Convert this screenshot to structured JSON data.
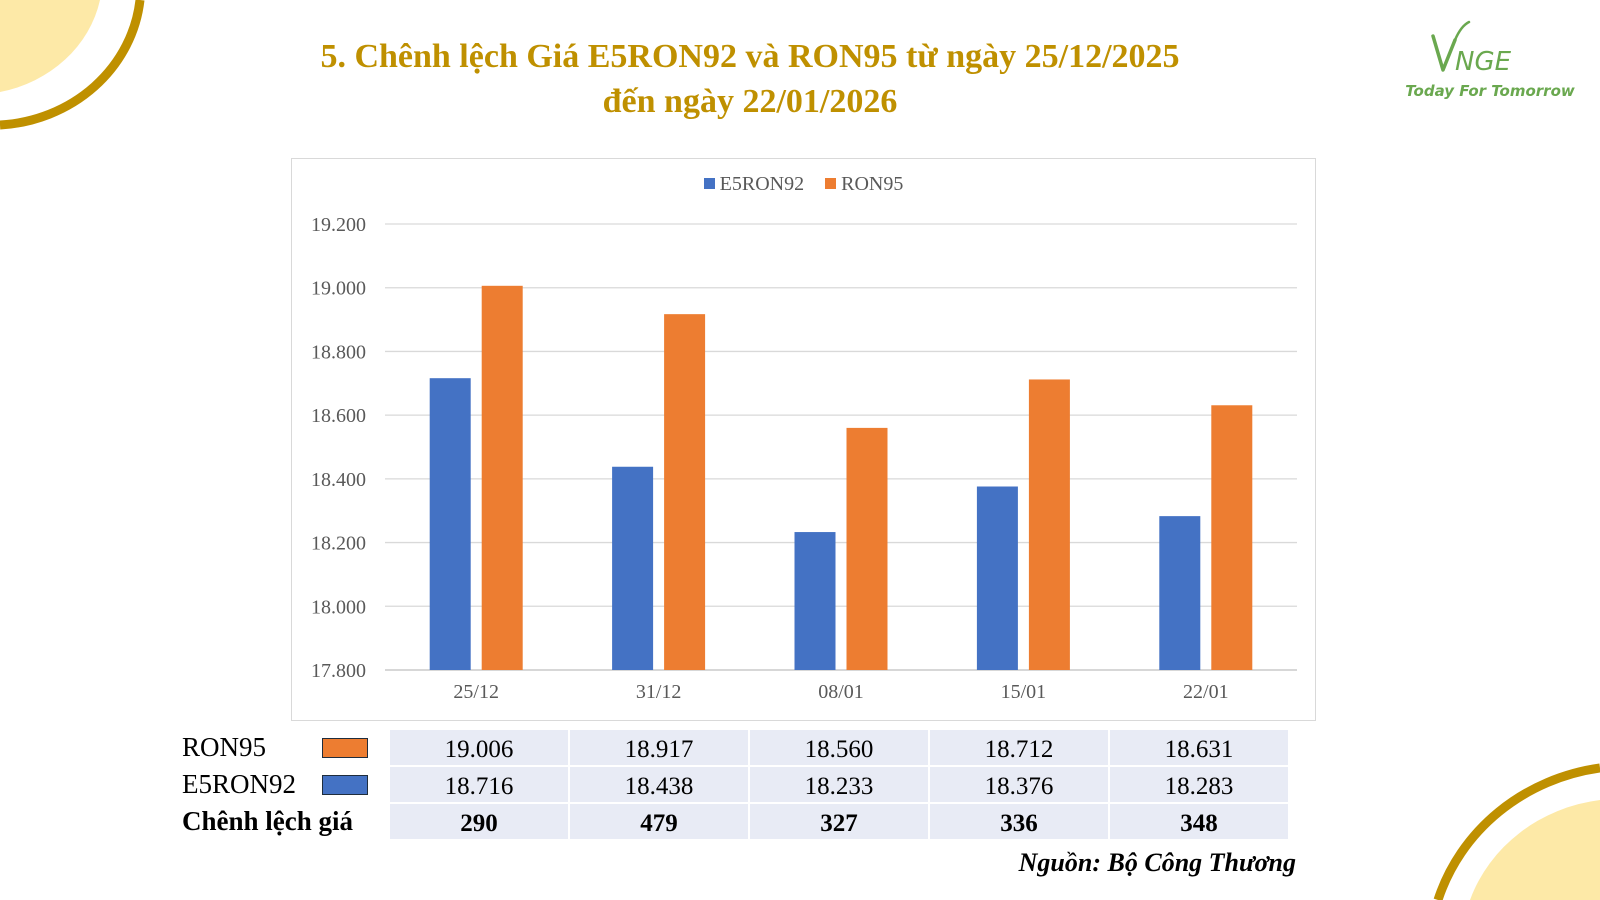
{
  "page": {
    "title_line1": "5. Chênh lệch Giá E5RON92 và RON95 từ ngày 25/12/2025",
    "title_line2": "đến ngày 22/01/2026",
    "source": "Nguồn: Bộ Công Thương"
  },
  "logo": {
    "brand": "VNGE",
    "tagline": "Today For Tomorrow"
  },
  "colors": {
    "title": "#bf9000",
    "e5ron92": "#4472c4",
    "ron95": "#ed7d31",
    "table_fill": "#e8ebf5",
    "deco_gold": "#bf9000",
    "deco_cream": "#fde9a7",
    "logo_green": "#6aa84f"
  },
  "chart_data": {
    "type": "bar",
    "title": "",
    "xlabel": "",
    "ylabel": "",
    "categories": [
      "25/12",
      "31/12",
      "08/01",
      "15/01",
      "22/01"
    ],
    "series": [
      {
        "name": "E5RON92",
        "values": [
          18716,
          18438,
          18233,
          18376,
          18283
        ]
      },
      {
        "name": "RON95",
        "values": [
          19006,
          18917,
          18560,
          18712,
          18631
        ]
      }
    ],
    "ylim": [
      17800,
      19200
    ],
    "yticks": [
      17800,
      18000,
      18200,
      18400,
      18600,
      18800,
      19000,
      19200
    ],
    "ytick_labels": [
      "17.800",
      "18.000",
      "18.200",
      "18.400",
      "18.600",
      "18.800",
      "19.000",
      "19.200"
    ],
    "grid": true,
    "legend": "top-center"
  },
  "table": {
    "rows": [
      {
        "label": "RON95",
        "series": "RON95",
        "values": [
          "19.006",
          "18.917",
          "18.560",
          "18.712",
          "18.631"
        ]
      },
      {
        "label": "E5RON92",
        "series": "E5RON92",
        "values": [
          "18.716",
          "18.438",
          "18.233",
          "18.376",
          "18.283"
        ]
      },
      {
        "label": "Chênh lệch giá",
        "values": [
          "290",
          "479",
          "327",
          "336",
          "348"
        ]
      }
    ]
  }
}
